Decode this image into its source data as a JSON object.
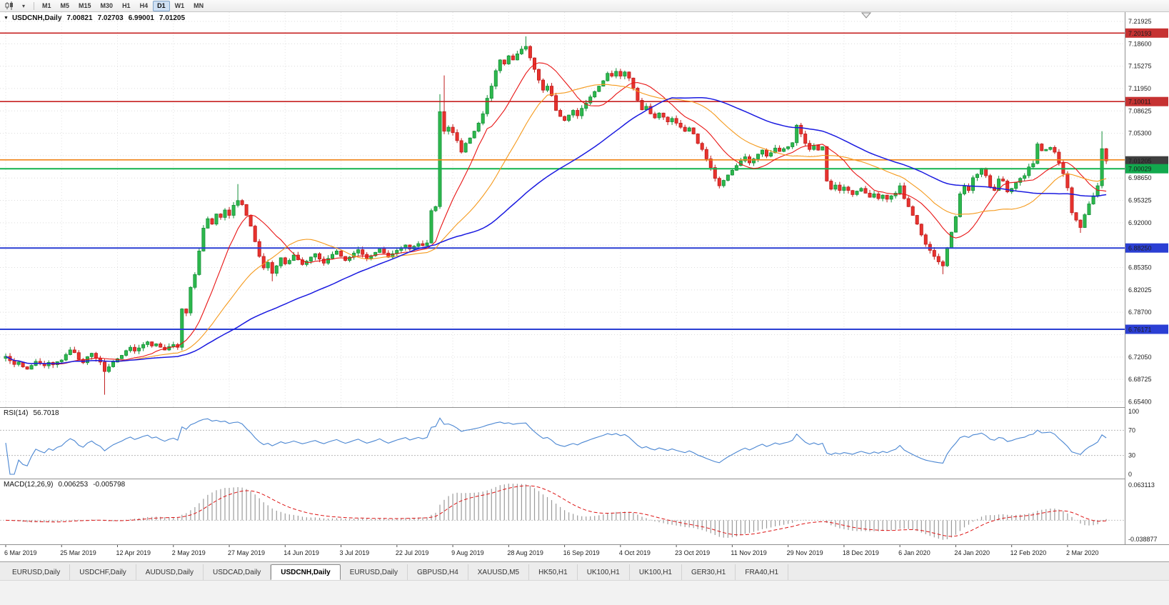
{
  "toolbar": {
    "timeframes": [
      "M1",
      "M5",
      "M15",
      "M30",
      "H1",
      "H4",
      "D1",
      "W1",
      "MN"
    ],
    "active_timeframe": "D1"
  },
  "chart_header": {
    "collapse_icon": "▼",
    "symbol": "USDCNH,Daily",
    "open": "7.00821",
    "high": "7.02703",
    "low": "6.99001",
    "close": "7.01205"
  },
  "rsi_header": {
    "name": "RSI(14)",
    "value": "56.7018"
  },
  "macd_header": {
    "name": "MACD(12,26,9)",
    "value": "0.006253",
    "signal": "-0.005798"
  },
  "price_axis": {
    "ticks": [
      "7.21925",
      "7.18600",
      "7.15275",
      "7.11950",
      "7.08625",
      "7.05300",
      "7.01975",
      "6.98650",
      "6.95325",
      "6.92000",
      "6.88675",
      "6.85350",
      "6.82025",
      "6.78700",
      "6.75375",
      "6.72050",
      "6.68725",
      "6.65400"
    ],
    "badges": [
      {
        "label": "7.20193",
        "price": 7.20193,
        "bg": "#c63232"
      },
      {
        "label": "7.10011",
        "price": 7.10011,
        "bg": "#c63232"
      },
      {
        "label": "7.01205",
        "price": 7.01205,
        "bg": "#3f3f3f"
      },
      {
        "label": "7.00029",
        "price": 7.00029,
        "bg": "#12a94e"
      },
      {
        "label": "6.88250",
        "price": 6.8825,
        "bg": "#2b3fd4"
      },
      {
        "label": "6.76171",
        "price": 6.76171,
        "bg": "#2b3fd4"
      }
    ]
  },
  "rsi_axis": {
    "labels": [
      {
        "v": 100,
        "label": "100"
      },
      {
        "v": 70,
        "label": "70"
      },
      {
        "v": 30,
        "label": "30"
      },
      {
        "v": 0,
        "label": "0"
      }
    ]
  },
  "macd_axis": {
    "top_label": "0.063113",
    "bottom_label": "-0.038877"
  },
  "tabs": {
    "items": [
      "EURUSD,Daily",
      "USDCHF,Daily",
      "AUDUSD,Daily",
      "USDCAD,Daily",
      "USDCNH,Daily",
      "EURUSD,Daily",
      "GBPUSD,H4",
      "XAUUSD,M5",
      "HK50,H1",
      "UK100,H1",
      "UK100,H1",
      "GER30,H1",
      "FRA40,H1"
    ],
    "active_index": 4
  },
  "chart_data": {
    "type": "candlestick",
    "symbol": "USDCNH",
    "timeframe": "Daily",
    "y_range": {
      "min": 6.646,
      "max": 7.233
    },
    "x_axis": {
      "tick_indices": [
        0,
        13,
        26,
        39,
        52,
        65,
        78,
        91,
        104,
        117,
        130,
        143,
        156,
        169,
        182,
        195,
        208,
        221,
        234,
        247
      ],
      "tick_labels": [
        "6 Mar 2019",
        "25 Mar 2019",
        "12 Apr 2019",
        "2 May 2019",
        "27 May 2019",
        "14 Jun 2019",
        "3 Jul 2019",
        "22 Jul 2019",
        "9 Aug 2019",
        "28 Aug 2019",
        "16 Sep 2019",
        "4 Oct 2019",
        "23 Oct 2019",
        "11 Nov 2019",
        "29 Nov 2019",
        "18 Dec 2019",
        "6 Jan 2020",
        "24 Jan 2020",
        "12 Feb 2020",
        "2 Mar 2020"
      ]
    },
    "first_open": 6.7185,
    "closes": [
      6.7215,
      6.715,
      6.7095,
      6.713,
      6.706,
      6.7025,
      6.708,
      6.714,
      6.7105,
      6.7075,
      6.7125,
      6.709,
      6.7135,
      6.716,
      6.724,
      6.731,
      6.727,
      6.717,
      6.712,
      6.721,
      6.726,
      6.7185,
      6.713,
      6.699,
      6.706,
      6.713,
      6.718,
      6.723,
      6.73,
      6.735,
      6.7295,
      6.734,
      6.739,
      6.743,
      6.737,
      6.74,
      6.735,
      6.731,
      6.736,
      6.739,
      6.735,
      6.792,
      6.786,
      6.824,
      6.843,
      6.878,
      6.912,
      6.926,
      6.918,
      6.933,
      6.928,
      6.939,
      6.931,
      6.946,
      6.953,
      6.947,
      6.931,
      6.915,
      6.892,
      6.87,
      6.853,
      6.861,
      6.845,
      6.856,
      6.868,
      6.859,
      6.864,
      6.872,
      6.865,
      6.858,
      6.863,
      6.869,
      6.874,
      6.866,
      6.86,
      6.867,
      6.873,
      6.878,
      6.87,
      6.864,
      6.869,
      6.875,
      6.88,
      6.873,
      6.867,
      6.871,
      6.876,
      6.882,
      6.875,
      6.869,
      6.874,
      6.879,
      6.883,
      6.887,
      6.881,
      6.885,
      6.889,
      6.886,
      6.89,
      6.938,
      6.944,
      7.085,
      7.056,
      7.062,
      7.054,
      7.042,
      7.025,
      7.038,
      7.046,
      7.056,
      7.068,
      7.082,
      7.105,
      7.123,
      7.146,
      7.162,
      7.156,
      7.168,
      7.162,
      7.171,
      7.178,
      7.182,
      7.165,
      7.148,
      7.132,
      7.117,
      7.123,
      7.109,
      7.087,
      7.078,
      7.072,
      7.08,
      7.087,
      7.079,
      7.09,
      7.098,
      7.107,
      7.115,
      7.123,
      7.131,
      7.142,
      7.138,
      7.145,
      7.138,
      7.144,
      7.135,
      7.12,
      7.102,
      7.088,
      7.093,
      7.082,
      7.076,
      7.083,
      7.077,
      7.07,
      7.075,
      7.068,
      7.062,
      7.056,
      7.061,
      7.052,
      7.038,
      7.029,
      7.015,
      7.002,
      6.986,
      6.975,
      6.983,
      6.991,
      6.998,
      7.005,
      7.012,
      7.018,
      7.009,
      7.015,
      7.022,
      7.028,
      7.019,
      7.024,
      7.031,
      7.026,
      7.03,
      7.033,
      7.039,
      7.065,
      7.052,
      7.038,
      7.029,
      7.035,
      7.028,
      7.033,
      6.982,
      6.97,
      6.976,
      6.968,
      6.973,
      6.968,
      6.962,
      6.967,
      6.971,
      6.964,
      6.958,
      6.963,
      6.956,
      6.961,
      6.955,
      6.96,
      6.964,
      6.975,
      6.956,
      6.944,
      6.931,
      6.918,
      6.902,
      6.888,
      6.879,
      6.87,
      6.862,
      6.856,
      6.883,
      6.906,
      6.929,
      6.963,
      6.974,
      6.968,
      6.987,
      6.992,
      7.001,
      6.99,
      6.973,
      6.968,
      6.985,
      6.982,
      6.966,
      6.971,
      6.98,
      6.986,
      6.99,
      7.003,
      7.008,
      7.037,
      7.027,
      7.029,
      7.032,
      7.025,
      7.009,
      6.993,
      6.972,
      6.935,
      6.924,
      6.913,
      6.932,
      6.948,
      6.96,
      6.975,
      7.03,
      7.012
    ],
    "wick_overrides": {
      "23": {
        "low": 6.6645
      },
      "54": {
        "high": 6.9775
      },
      "62": {
        "low": 6.833
      },
      "101": {
        "high": 7.111
      },
      "102": {
        "high": 7.139
      },
      "121": {
        "high": 7.197
      },
      "218": {
        "low": 6.8435
      },
      "250": {
        "low": 6.905
      },
      "255": {
        "high": 7.056
      }
    },
    "moving_averages": [
      {
        "period": 12,
        "color": "#e81414",
        "width": 1.1,
        "name": "ma-fast-red"
      },
      {
        "period": 26,
        "color": "#f59a1d",
        "width": 1.1,
        "name": "ma-mid-orange"
      },
      {
        "period": 55,
        "color": "#1a1ae0",
        "width": 1.5,
        "name": "ma-slow-blue"
      }
    ],
    "hlines": [
      {
        "price": 7.20193,
        "color": "#c62222",
        "width": 1.6
      },
      {
        "price": 7.10011,
        "color": "#c62222",
        "width": 1.6
      },
      {
        "price": 7.0135,
        "color": "#f08418",
        "width": 1.6
      },
      {
        "price": 7.00029,
        "color": "#14b34e",
        "width": 2
      },
      {
        "price": 6.8825,
        "color": "#2b3fd4",
        "width": 2
      },
      {
        "price": 6.76171,
        "color": "#2b3fd4",
        "width": 2
      }
    ],
    "candle_colors": {
      "up_fill": "#2db84d",
      "up_border": "#148f38",
      "down_fill": "#e8332e",
      "down_border": "#bf1d1d"
    },
    "indicators": {
      "rsi": {
        "period": 14,
        "color": "#4a86d2",
        "levels": [
          70,
          30
        ],
        "range": [
          0,
          100
        ]
      },
      "macd": {
        "fast": 12,
        "slow": 26,
        "signal": 9,
        "hist_color": "#9b9b9b",
        "signal_color": "#dd1414"
      }
    }
  }
}
